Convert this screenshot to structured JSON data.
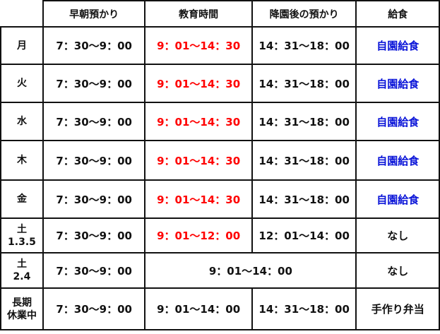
{
  "headers": [
    "",
    "早朝預かり",
    "教育時間",
    "降園後の預かり",
    "給食"
  ],
  "rows": [
    {
      "day": "月",
      "early": "7：30〜9：00",
      "edu": "9：01〜14：30",
      "after": "14：31〜18：00",
      "lunch": "自園給食"
    },
    {
      "day": "火",
      "early": "7：30〜9：00",
      "edu": "9：01〜14：30",
      "after": "14：31〜18：00",
      "lunch": "自園給食"
    },
    {
      "day": "水",
      "early": "7：30〜9：00",
      "edu": "9：01〜14：30",
      "after": "14：31〜18：00",
      "lunch": "自園給食"
    },
    {
      "day": "木",
      "early": "7：30〜9：00",
      "edu": "9：01〜14：30",
      "after": "14：31〜18：00",
      "lunch": "自園給食"
    },
    {
      "day": "金",
      "early": "7：30〜9：00",
      "edu": "9：01〜14：30",
      "after": "14：31〜18：00",
      "lunch": "自園給食"
    },
    {
      "day": "土",
      "day2": "1.3.5",
      "early": "7：30〜9：00",
      "edu": "9：01〜12：00",
      "after": "12：01〜14：00",
      "lunch": "なし"
    },
    {
      "day": "土",
      "day2": "2.4",
      "early": "7：30〜9：00",
      "merged": "9：01〜14：00",
      "lunch": "なし"
    },
    {
      "day": "長期",
      "day2": "休業中",
      "early": "7：30〜9：00",
      "edu": "9：01〜14：00",
      "after": "14：31〜18：00",
      "lunch": "手作り弁当"
    }
  ],
  "colors": {
    "education_red": "#ff0000",
    "lunch_blue": "#0a14d8"
  }
}
